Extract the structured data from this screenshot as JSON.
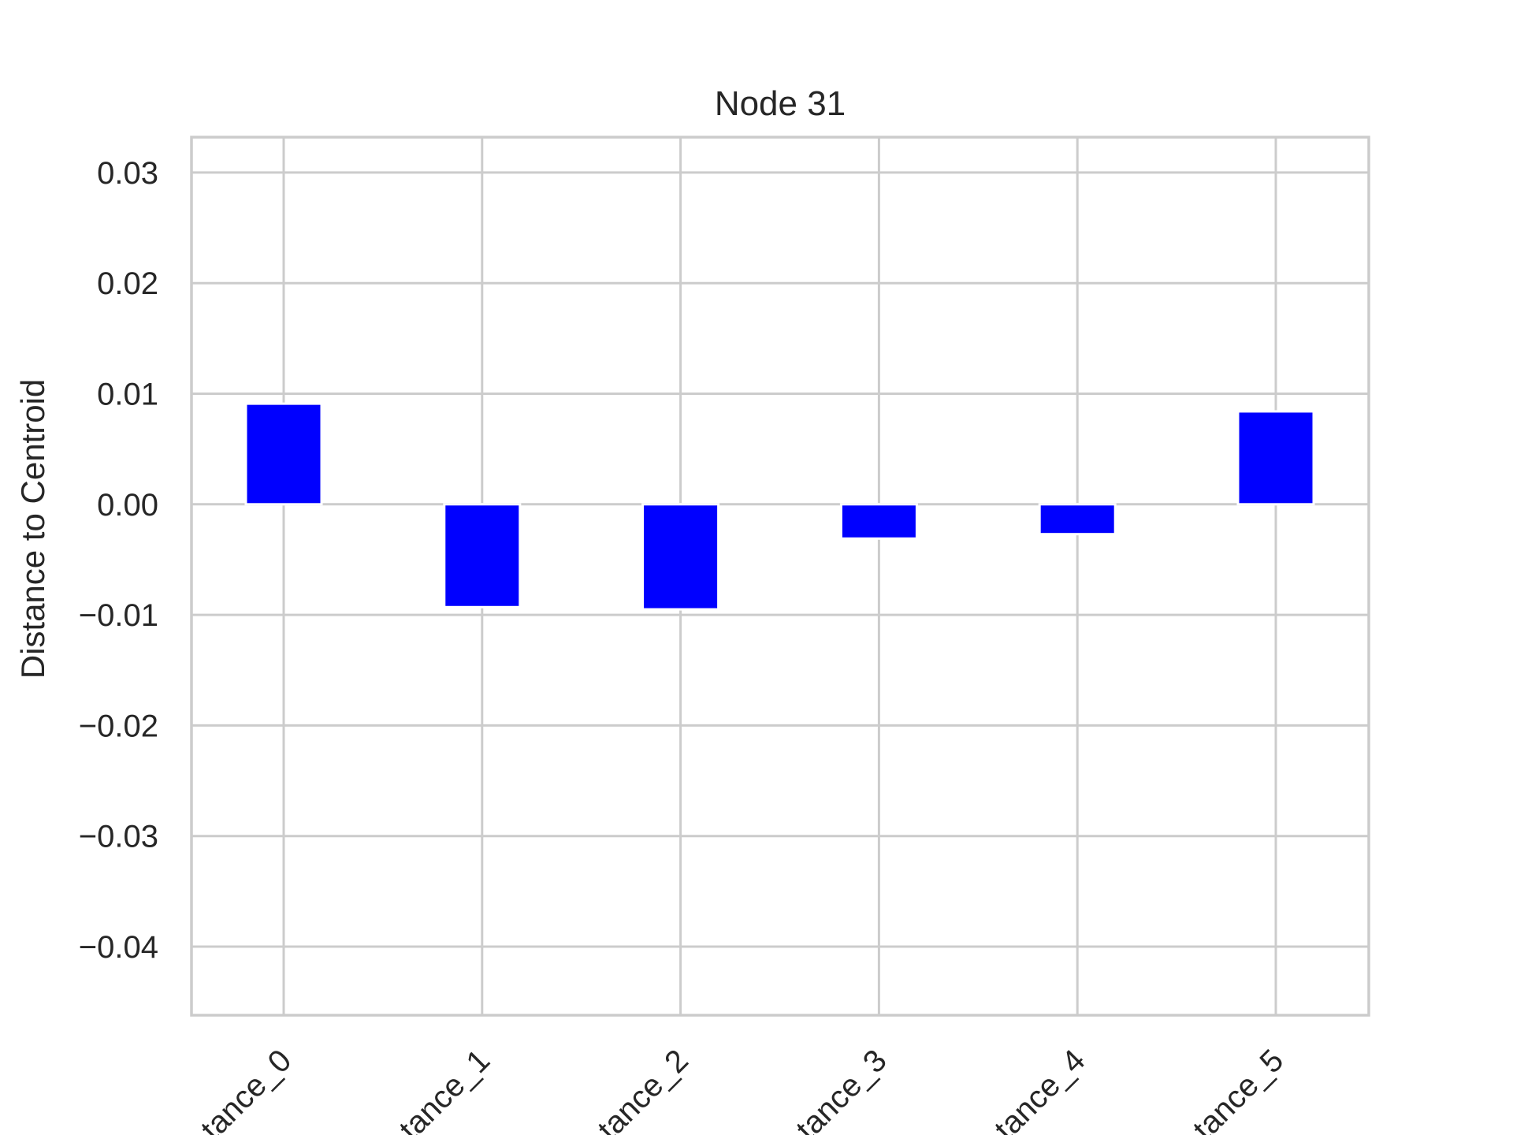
{
  "chart_data": {
    "type": "bar",
    "title": "Node 31",
    "xlabel": "",
    "ylabel": "Distance to Centroid",
    "categories": [
      "tance_0",
      "tance_1",
      "tance_2",
      "tance_3",
      "tance_4",
      "tance_5"
    ],
    "values": [
      0.0091,
      -0.0093,
      -0.0095,
      -0.0031,
      -0.0027,
      0.0084
    ],
    "ylim": [
      -0.0462,
      0.0332
    ],
    "yticks": [
      0.03,
      0.02,
      0.01,
      0.0,
      -0.01,
      -0.02,
      -0.03,
      -0.04
    ],
    "ytick_labels": [
      "0.03",
      "0.02",
      "0.01",
      "0.00",
      "−0.01",
      "−0.02",
      "−0.03",
      "−0.04"
    ],
    "grid": true,
    "colors": {
      "bar": "#0000ff",
      "grid": "#cccccc",
      "text": "#262626"
    }
  }
}
